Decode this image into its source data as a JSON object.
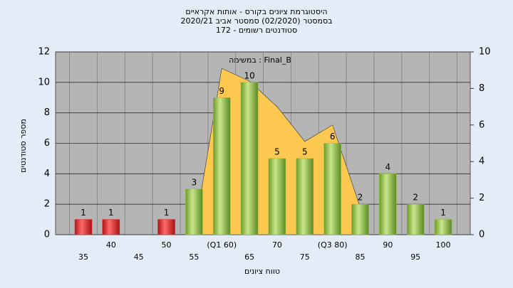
{
  "chart_data": {
    "type": "bar",
    "title": "היסטוגרמת ציונים בקורס - אותות אקראיים",
    "subtitle": "בסמסטר  (02/2020)  סמסטר אביב 2020/21",
    "subtitle2": "סטודנטים רשומים - 172",
    "annotation": "במשימה : Final_B",
    "x_label": "טווח ציונים",
    "y_label": "מספר סטודנטים",
    "categories": [
      "35",
      "40",
      "45",
      "50",
      "55",
      "(Q1 60)",
      "65",
      "70",
      "75",
      "(Q3 80)",
      "85",
      "90",
      "95",
      "100"
    ],
    "series": [
      {
        "type": "bar",
        "colors": [
          "#e0262b",
          "#e0262b",
          "#e0262b",
          "#e0262b",
          "#8fc13e",
          "#8fc13e",
          "#8fc13e",
          "#8fc13e",
          "#8fc13e",
          "#8fc13e",
          "#8fc13e",
          "#8fc13e",
          "#8fc13e",
          "#8fc13e"
        ],
        "values": [
          1,
          1,
          0,
          1,
          3,
          9,
          10,
          5,
          5,
          6,
          2,
          4,
          2,
          1
        ]
      },
      {
        "type": "area",
        "axis": "y2",
        "color": "#fcc850",
        "values": [
          null,
          null,
          null,
          null,
          0,
          9.1,
          8.4,
          7,
          5.1,
          6,
          1.5,
          null,
          null,
          null
        ]
      }
    ],
    "ylim": [
      0,
      12
    ],
    "yticks": [
      0,
      2,
      4,
      6,
      8,
      10,
      12
    ],
    "y2lim": [
      0,
      10
    ],
    "y2ticks": [
      0,
      2,
      4,
      6,
      8,
      10
    ],
    "grid": true
  }
}
